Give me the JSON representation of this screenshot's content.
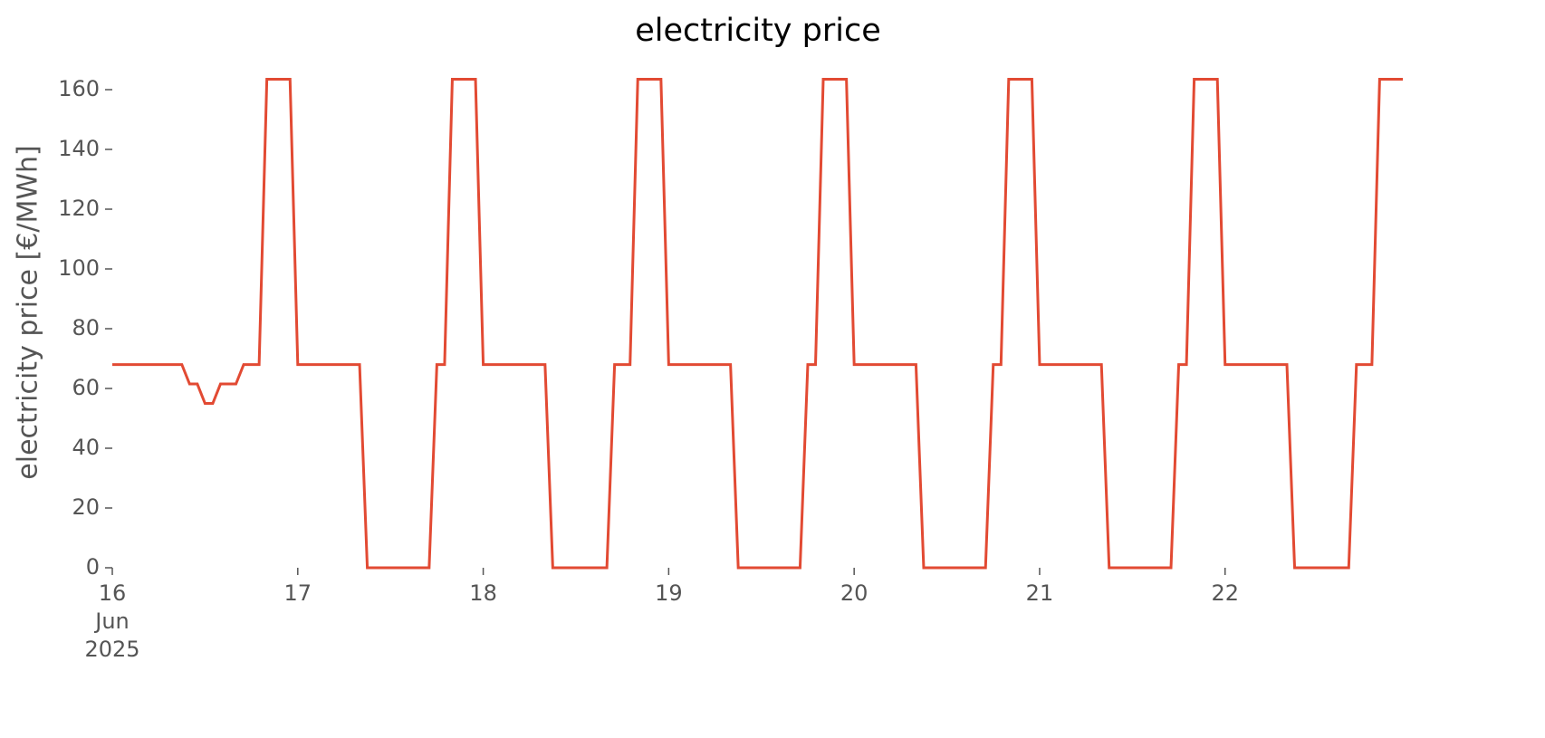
{
  "chart_data": {
    "type": "line",
    "title": "electricity price",
    "y_label": "electricity price [€/MWh]",
    "color": "#e24a33",
    "ylim": [
      0,
      165
    ],
    "yticks": [
      0,
      20,
      40,
      60,
      80,
      100,
      120,
      140,
      160
    ],
    "xlim": [
      "2025-06-16 00:00",
      "2025-06-22 23:00"
    ],
    "xticks": [
      {
        "value": "2025-06-16 00:00",
        "label": "16\nJun\n2025"
      },
      {
        "value": "2025-06-17 00:00",
        "label": "17"
      },
      {
        "value": "2025-06-18 00:00",
        "label": "18"
      },
      {
        "value": "2025-06-19 00:00",
        "label": "19"
      },
      {
        "value": "2025-06-20 00:00",
        "label": "20"
      },
      {
        "value": "2025-06-21 00:00",
        "label": "21"
      },
      {
        "value": "2025-06-22 00:00",
        "label": "22"
      }
    ],
    "x": [
      "2025-06-16 00:00",
      "2025-06-16 01:00",
      "2025-06-16 02:00",
      "2025-06-16 03:00",
      "2025-06-16 04:00",
      "2025-06-16 05:00",
      "2025-06-16 06:00",
      "2025-06-16 07:00",
      "2025-06-16 08:00",
      "2025-06-16 09:00",
      "2025-06-16 10:00",
      "2025-06-16 11:00",
      "2025-06-16 12:00",
      "2025-06-16 13:00",
      "2025-06-16 14:00",
      "2025-06-16 15:00",
      "2025-06-16 16:00",
      "2025-06-16 17:00",
      "2025-06-16 18:00",
      "2025-06-16 19:00",
      "2025-06-16 20:00",
      "2025-06-16 21:00",
      "2025-06-16 22:00",
      "2025-06-16 23:00",
      "2025-06-17 00:00",
      "2025-06-17 01:00",
      "2025-06-17 02:00",
      "2025-06-17 03:00",
      "2025-06-17 04:00",
      "2025-06-17 05:00",
      "2025-06-17 06:00",
      "2025-06-17 07:00",
      "2025-06-17 08:00",
      "2025-06-17 09:00",
      "2025-06-17 10:00",
      "2025-06-17 11:00",
      "2025-06-17 12:00",
      "2025-06-17 13:00",
      "2025-06-17 14:00",
      "2025-06-17 15:00",
      "2025-06-17 16:00",
      "2025-06-17 17:00",
      "2025-06-17 18:00",
      "2025-06-17 19:00",
      "2025-06-17 20:00",
      "2025-06-17 21:00",
      "2025-06-17 22:00",
      "2025-06-17 23:00",
      "2025-06-18 00:00",
      "2025-06-18 01:00",
      "2025-06-18 02:00",
      "2025-06-18 03:00",
      "2025-06-18 04:00",
      "2025-06-18 05:00",
      "2025-06-18 06:00",
      "2025-06-18 07:00",
      "2025-06-18 08:00",
      "2025-06-18 09:00",
      "2025-06-18 10:00",
      "2025-06-18 11:00",
      "2025-06-18 12:00",
      "2025-06-18 13:00",
      "2025-06-18 14:00",
      "2025-06-18 15:00",
      "2025-06-18 16:00",
      "2025-06-18 17:00",
      "2025-06-18 18:00",
      "2025-06-18 19:00",
      "2025-06-18 20:00",
      "2025-06-18 21:00",
      "2025-06-18 22:00",
      "2025-06-18 23:00",
      "2025-06-19 00:00",
      "2025-06-19 01:00",
      "2025-06-19 02:00",
      "2025-06-19 03:00",
      "2025-06-19 04:00",
      "2025-06-19 05:00",
      "2025-06-19 06:00",
      "2025-06-19 07:00",
      "2025-06-19 08:00",
      "2025-06-19 09:00",
      "2025-06-19 10:00",
      "2025-06-19 11:00",
      "2025-06-19 12:00",
      "2025-06-19 13:00",
      "2025-06-19 14:00",
      "2025-06-19 15:00",
      "2025-06-19 16:00",
      "2025-06-19 17:00",
      "2025-06-19 18:00",
      "2025-06-19 19:00",
      "2025-06-19 20:00",
      "2025-06-19 21:00",
      "2025-06-19 22:00",
      "2025-06-19 23:00",
      "2025-06-20 00:00",
      "2025-06-20 01:00",
      "2025-06-20 02:00",
      "2025-06-20 03:00",
      "2025-06-20 04:00",
      "2025-06-20 05:00",
      "2025-06-20 06:00",
      "2025-06-20 07:00",
      "2025-06-20 08:00",
      "2025-06-20 09:00",
      "2025-06-20 10:00",
      "2025-06-20 11:00",
      "2025-06-20 12:00",
      "2025-06-20 13:00",
      "2025-06-20 14:00",
      "2025-06-20 15:00",
      "2025-06-20 16:00",
      "2025-06-20 17:00",
      "2025-06-20 18:00",
      "2025-06-20 19:00",
      "2025-06-20 20:00",
      "2025-06-20 21:00",
      "2025-06-20 22:00",
      "2025-06-20 23:00",
      "2025-06-21 00:00",
      "2025-06-21 01:00",
      "2025-06-21 02:00",
      "2025-06-21 03:00",
      "2025-06-21 04:00",
      "2025-06-21 05:00",
      "2025-06-21 06:00",
      "2025-06-21 07:00",
      "2025-06-21 08:00",
      "2025-06-21 09:00",
      "2025-06-21 10:00",
      "2025-06-21 11:00",
      "2025-06-21 12:00",
      "2025-06-21 13:00",
      "2025-06-21 14:00",
      "2025-06-21 15:00",
      "2025-06-21 16:00",
      "2025-06-21 17:00",
      "2025-06-21 18:00",
      "2025-06-21 19:00",
      "2025-06-21 20:00",
      "2025-06-21 21:00",
      "2025-06-21 22:00",
      "2025-06-21 23:00",
      "2025-06-22 00:00",
      "2025-06-22 01:00",
      "2025-06-22 02:00",
      "2025-06-22 03:00",
      "2025-06-22 04:00",
      "2025-06-22 05:00",
      "2025-06-22 06:00",
      "2025-06-22 07:00",
      "2025-06-22 08:00",
      "2025-06-22 09:00",
      "2025-06-22 10:00",
      "2025-06-22 11:00",
      "2025-06-22 12:00",
      "2025-06-22 13:00",
      "2025-06-22 14:00",
      "2025-06-22 15:00",
      "2025-06-22 16:00",
      "2025-06-22 17:00",
      "2025-06-22 18:00",
      "2025-06-22 19:00",
      "2025-06-22 20:00",
      "2025-06-22 21:00",
      "2025-06-22 22:00",
      "2025-06-22 23:00"
    ],
    "values": [
      68,
      68,
      68,
      68,
      68,
      68,
      68,
      68,
      68,
      68,
      61.5,
      61.5,
      55,
      55,
      61.5,
      61.5,
      61.5,
      68,
      68,
      68,
      163.5,
      163.5,
      163.5,
      163.5,
      68,
      68,
      68,
      68,
      68,
      68,
      68,
      68,
      68,
      0,
      0,
      0,
      0,
      0,
      0,
      0,
      0,
      0,
      68,
      68,
      163.5,
      163.5,
      163.5,
      163.5,
      68,
      68,
      68,
      68,
      68,
      68,
      68,
      68,
      68,
      0,
      0,
      0,
      0,
      0,
      0,
      0,
      0,
      68,
      68,
      68,
      163.5,
      163.5,
      163.5,
      163.5,
      68,
      68,
      68,
      68,
      68,
      68,
      68,
      68,
      68,
      0,
      0,
      0,
      0,
      0,
      0,
      0,
      0,
      0,
      68,
      68,
      163.5,
      163.5,
      163.5,
      163.5,
      68,
      68,
      68,
      68,
      68,
      68,
      68,
      68,
      68,
      0,
      0,
      0,
      0,
      0,
      0,
      0,
      0,
      0,
      68,
      68,
      163.5,
      163.5,
      163.5,
      163.5,
      68,
      68,
      68,
      68,
      68,
      68,
      68,
      68,
      68,
      0,
      0,
      0,
      0,
      0,
      0,
      0,
      0,
      0,
      68,
      68,
      163.5,
      163.5,
      163.5,
      163.5,
      68,
      68,
      68,
      68,
      68,
      68,
      68,
      68,
      68,
      0,
      0,
      0,
      0,
      0,
      0,
      0,
      0,
      68,
      68,
      68,
      163.5,
      163.5,
      163.5,
      163.5
    ]
  }
}
